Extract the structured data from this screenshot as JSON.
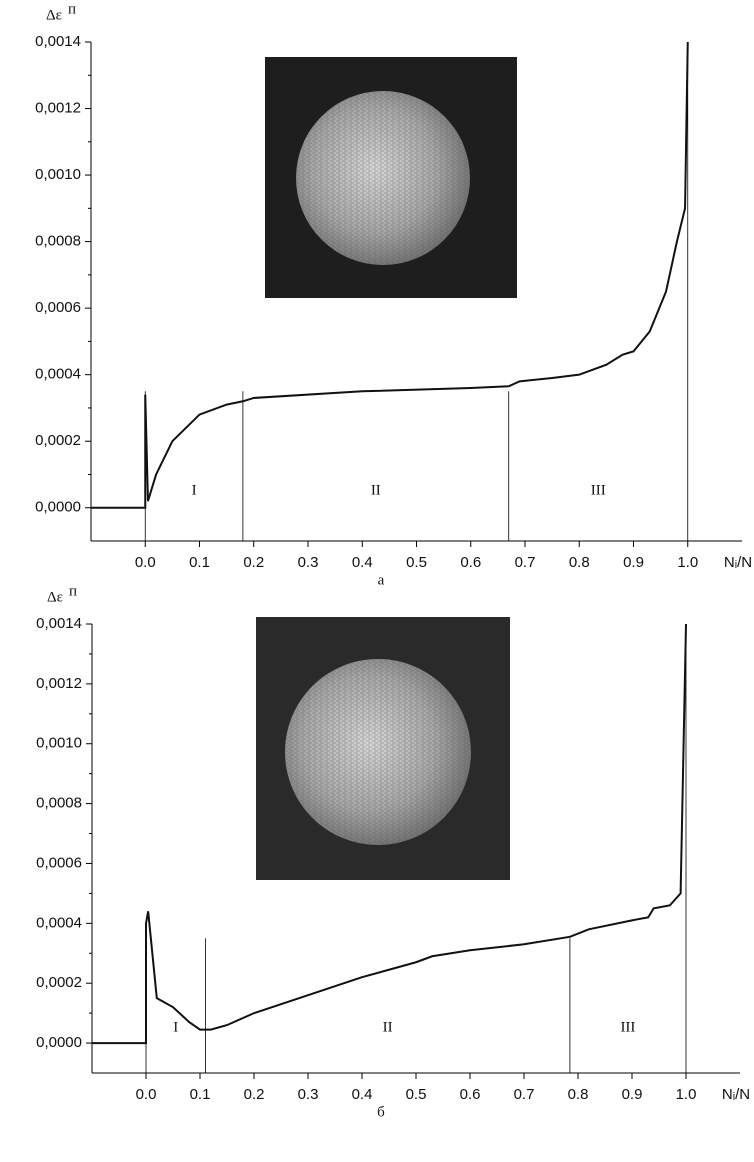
{
  "chart_data": [
    {
      "type": "line",
      "y_label": "Δε",
      "y_label_sup": "п",
      "x_label": "Nᵢ/N",
      "caption": "а",
      "xlim": [
        -0.1,
        1.1
      ],
      "ylim": [
        -0.0001,
        0.0014
      ],
      "xticks": [
        {
          "value": 0,
          "label": "0.0"
        },
        0.1,
        0.2,
        0.3,
        0.4,
        0.5,
        0.6,
        0.7,
        0.8,
        0.9,
        {
          "value": 1,
          "label": "1.0"
        }
      ],
      "yticks": [
        {
          "value": 0,
          "label": "0,0000"
        },
        {
          "value": 0.0002,
          "label": "0,0002"
        },
        {
          "value": 0.0004,
          "label": "0,0004"
        },
        {
          "value": 0.0006,
          "label": "0,0006"
        },
        {
          "value": 0.0008,
          "label": "0,0008"
        },
        {
          "value": 0.001,
          "label": "0,0010"
        },
        {
          "value": 0.0012,
          "label": "0,0012"
        },
        {
          "value": 0.0014,
          "label": "0,0014"
        }
      ],
      "boundaries": [
        0,
        0.18,
        0.67,
        1.0
      ],
      "regions": [
        "I",
        "II",
        "III"
      ],
      "series": [
        {
          "color": "#111111",
          "x": [
            -0.1,
            0,
            0,
            0.005,
            0.02,
            0.05,
            0.1,
            0.15,
            0.18,
            0.2,
            0.4,
            0.6,
            0.67,
            0.69,
            0.75,
            0.8,
            0.85,
            0.88,
            0.9,
            0.93,
            0.96,
            0.98,
            0.995,
            1.0
          ],
          "values": [
            0,
            0,
            0.00034,
            2e-05,
            0.0001,
            0.0002,
            0.00028,
            0.00031,
            0.00032,
            0.00033,
            0.00035,
            0.00036,
            0.000365,
            0.00038,
            0.00039,
            0.0004,
            0.00043,
            0.00046,
            0.00047,
            0.00053,
            0.00065,
            0.0008,
            0.0009,
            0.0014
          ]
        }
      ]
    },
    {
      "type": "line",
      "y_label": "Δε",
      "y_label_sup": "п",
      "x_label": "Nᵢ/N",
      "caption": "б",
      "xlim": [
        -0.1,
        1.1
      ],
      "ylim": [
        -0.0001,
        0.0014
      ],
      "xticks": [
        {
          "value": 0,
          "label": "0.0"
        },
        0.1,
        0.2,
        0.3,
        0.4,
        0.5,
        0.6,
        0.7,
        0.8,
        0.9,
        {
          "value": 1,
          "label": "1.0"
        }
      ],
      "yticks": [
        {
          "value": 0,
          "label": "0,0000"
        },
        {
          "value": 0.0002,
          "label": "0,0002"
        },
        {
          "value": 0.0004,
          "label": "0,0004"
        },
        {
          "value": 0.0006,
          "label": "0,0006"
        },
        {
          "value": 0.0008,
          "label": "0,0008"
        },
        {
          "value": 0.001,
          "label": "0,0010"
        },
        {
          "value": 0.0012,
          "label": "0,0012"
        },
        {
          "value": 0.0014,
          "label": "0,0014"
        }
      ],
      "boundaries": [
        0,
        0.11,
        0.785,
        1.0
      ],
      "regions": [
        "I",
        "II",
        "III"
      ],
      "series": [
        {
          "color": "#111111",
          "x": [
            -0.1,
            0,
            0,
            0.004,
            0.02,
            0.05,
            0.08,
            0.1,
            0.12,
            0.15,
            0.2,
            0.3,
            0.4,
            0.5,
            0.53,
            0.6,
            0.7,
            0.785,
            0.82,
            0.9,
            0.93,
            0.94,
            0.97,
            0.99,
            1.0
          ],
          "values": [
            0,
            0,
            0.0004,
            0.00044,
            0.00015,
            0.00012,
            7e-05,
            4.5e-05,
            4.5e-05,
            6e-05,
            0.0001,
            0.00016,
            0.00022,
            0.00027,
            0.00029,
            0.00031,
            0.00033,
            0.000355,
            0.00038,
            0.00041,
            0.00042,
            0.00045,
            0.00046,
            0.0005,
            0.0014
          ]
        }
      ]
    }
  ]
}
